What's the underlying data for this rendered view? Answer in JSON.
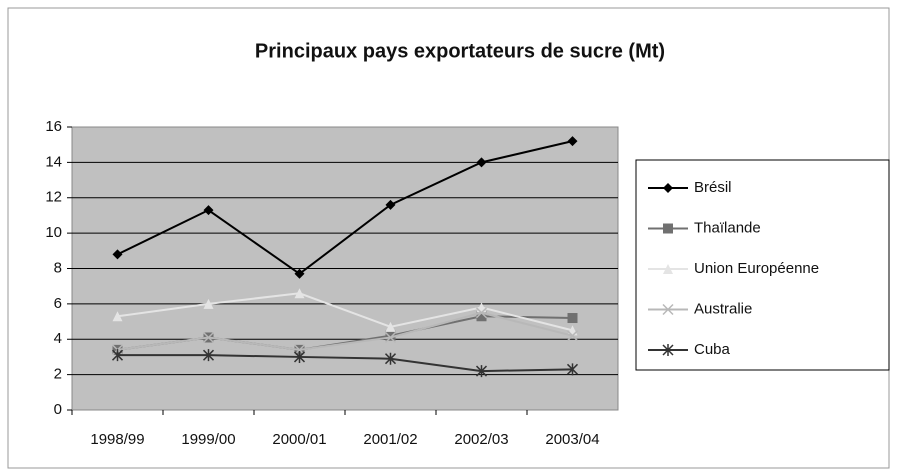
{
  "chart_data": {
    "type": "line",
    "title": "Principaux pays exportateurs de sucre (Mt)",
    "categories": [
      "1998/99",
      "1999/00",
      "2000/01",
      "2001/02",
      "2002/03",
      "2003/04"
    ],
    "series": [
      {
        "name": "Brésil",
        "color": "#000000",
        "marker": "diamond",
        "values": [
          8.8,
          11.3,
          7.7,
          11.6,
          14.0,
          15.2
        ]
      },
      {
        "name": "Thaïlande",
        "color": "#707070",
        "marker": "square",
        "values": [
          3.4,
          4.1,
          3.4,
          4.2,
          5.3,
          5.2
        ]
      },
      {
        "name": "Union Européenne",
        "color": "#e4e4e4",
        "marker": "triangle",
        "values": [
          5.3,
          6.0,
          6.6,
          4.7,
          5.8,
          4.5
        ]
      },
      {
        "name": "Australie",
        "color": "#b8b8b8",
        "marker": "x",
        "values": [
          3.4,
          4.1,
          3.4,
          4.1,
          5.5,
          4.2
        ]
      },
      {
        "name": "Cuba",
        "color": "#333333",
        "marker": "star",
        "values": [
          3.1,
          3.1,
          3.0,
          2.9,
          2.2,
          2.3
        ]
      }
    ],
    "ylim": [
      0,
      16
    ],
    "yticks": [
      0,
      2,
      4,
      6,
      8,
      10,
      12,
      14,
      16
    ],
    "grid": true,
    "legend": "right"
  }
}
